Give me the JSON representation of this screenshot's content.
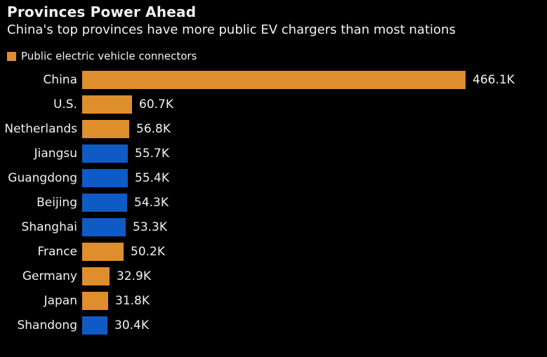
{
  "header": {
    "title": "Provinces Power Ahead",
    "subtitle": "China's top provinces have more public EV chargers than most nations"
  },
  "legend": {
    "label": "Public electric vehicle connectors",
    "swatch_color": "#de8e2d"
  },
  "colors": {
    "background": "#000000",
    "text": "#f2f2f2",
    "orange": "#de8e2d",
    "blue": "#0f5bc5"
  },
  "chart_data": {
    "type": "bar",
    "orientation": "horizontal",
    "title": "Provinces Power Ahead",
    "subtitle": "China's top provinces have more public EV chargers than most nations",
    "legend": [
      "Public electric vehicle connectors"
    ],
    "unit": "thousands of connectors",
    "xlim": [
      0,
      500
    ],
    "grid": false,
    "legend_position": "top-left",
    "categories": [
      "China",
      "U.S.",
      "Netherlands",
      "Jiangsu",
      "Guangdong",
      "Beijing",
      "Shanghai",
      "France",
      "Germany",
      "Japan",
      "Shandong"
    ],
    "values_k": [
      466.1,
      60.7,
      56.8,
      55.7,
      55.4,
      54.3,
      53.3,
      50.2,
      32.9,
      31.8,
      30.4
    ],
    "value_labels": [
      "466.1K",
      "60.7K",
      "56.8K",
      "55.7K",
      "55.4K",
      "54.3K",
      "53.3K",
      "50.2K",
      "32.9K",
      "31.8K",
      "30.4K"
    ],
    "bar_color_keys": [
      "orange",
      "orange",
      "orange",
      "blue",
      "blue",
      "blue",
      "blue",
      "orange",
      "orange",
      "orange",
      "blue"
    ],
    "color_meaning": "orange = countries, blue = Chinese provinces"
  }
}
